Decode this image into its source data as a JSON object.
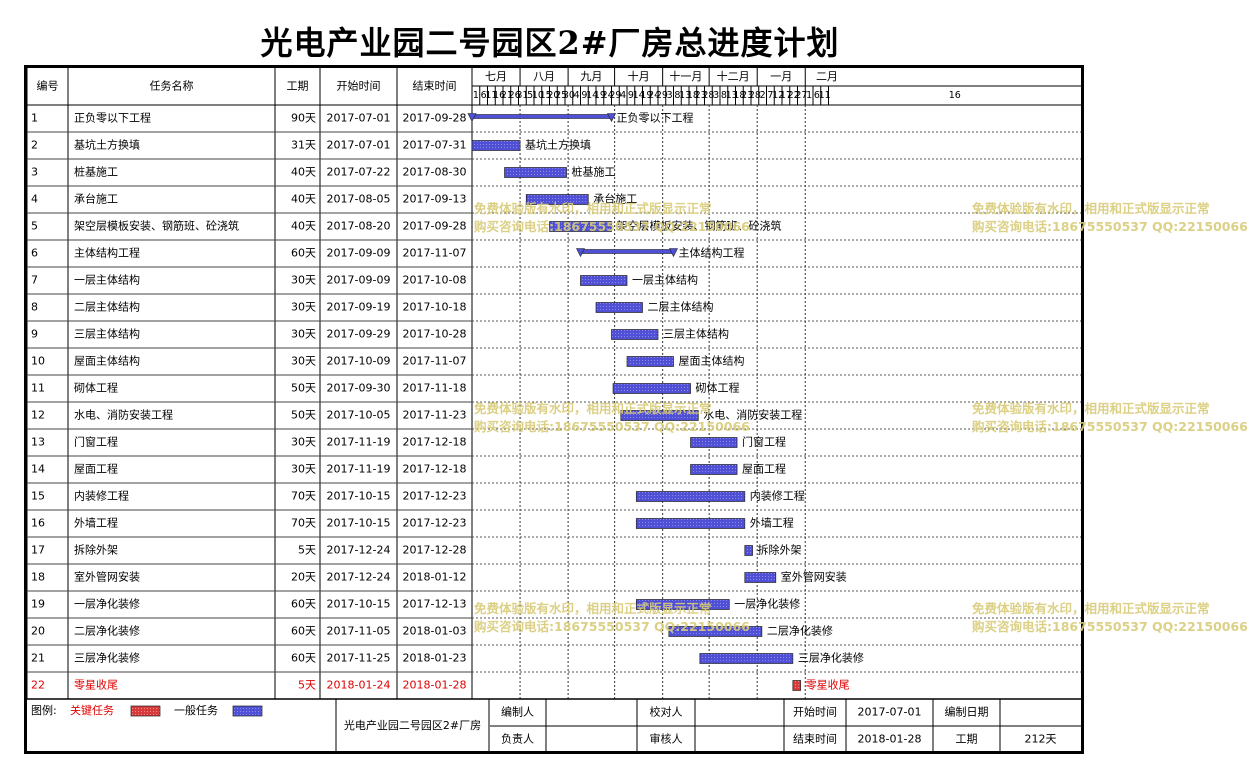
{
  "title": "光电产业园二号园区2#厂房总进度计划",
  "header": {
    "no": "编号",
    "task": "任务名称",
    "duration": "工期",
    "start": "开始时间",
    "end": "结束时间"
  },
  "timeline": {
    "months": [
      "七月",
      "八月",
      "九月",
      "十月",
      "十一月",
      "十二月",
      "一月",
      "二月"
    ],
    "day_ticks": [
      "1",
      "6",
      "11",
      "16",
      "21",
      "26",
      "31",
      "5",
      "10",
      "15",
      "20",
      "25",
      "30",
      "4",
      "9",
      "14",
      "19",
      "24",
      "29",
      "4",
      "9",
      "14",
      "19",
      "24",
      "29",
      "3",
      "8",
      "13",
      "18",
      "23",
      "28",
      "3",
      "8",
      "13",
      "18",
      "23",
      "28",
      "2",
      "7",
      "12",
      "17",
      "22",
      "27",
      "1",
      "6",
      "11",
      "16"
    ]
  },
  "chart_data": {
    "type": "gantt",
    "title": "光电产业园二号园区2#厂房总进度计划",
    "time_range": [
      "2017-07-01",
      "2018-02-20"
    ],
    "tasks": [
      {
        "no": "1",
        "name": "正负零以下工程",
        "duration": "90天",
        "start": "2017-07-01",
        "end": "2017-09-28",
        "kind": "summary"
      },
      {
        "no": "2",
        "name": "基坑土方换填",
        "duration": "31天",
        "start": "2017-07-01",
        "end": "2017-07-31",
        "kind": "normal"
      },
      {
        "no": "3",
        "name": "桩基施工",
        "duration": "40天",
        "start": "2017-07-22",
        "end": "2017-08-30",
        "kind": "normal"
      },
      {
        "no": "4",
        "name": "承台施工",
        "duration": "40天",
        "start": "2017-08-05",
        "end": "2017-09-13",
        "kind": "normal"
      },
      {
        "no": "5",
        "name": "架空层模板安装、钢筋班、砼浇筑",
        "duration": "40天",
        "start": "2017-08-20",
        "end": "2017-09-28",
        "kind": "normal"
      },
      {
        "no": "6",
        "name": "主体结构工程",
        "duration": "60天",
        "start": "2017-09-09",
        "end": "2017-11-07",
        "kind": "summary"
      },
      {
        "no": "7",
        "name": "一层主体结构",
        "duration": "30天",
        "start": "2017-09-09",
        "end": "2017-10-08",
        "kind": "normal"
      },
      {
        "no": "8",
        "name": "二层主体结构",
        "duration": "30天",
        "start": "2017-09-19",
        "end": "2017-10-18",
        "kind": "normal"
      },
      {
        "no": "9",
        "name": "三层主体结构",
        "duration": "30天",
        "start": "2017-09-29",
        "end": "2017-10-28",
        "kind": "normal"
      },
      {
        "no": "10",
        "name": "屋面主体结构",
        "duration": "30天",
        "start": "2017-10-09",
        "end": "2017-11-07",
        "kind": "normal"
      },
      {
        "no": "11",
        "name": "砌体工程",
        "duration": "50天",
        "start": "2017-09-30",
        "end": "2017-11-18",
        "kind": "normal"
      },
      {
        "no": "12",
        "name": "水电、消防安装工程",
        "duration": "50天",
        "start": "2017-10-05",
        "end": "2017-11-23",
        "kind": "normal"
      },
      {
        "no": "13",
        "name": "门窗工程",
        "duration": "30天",
        "start": "2017-11-19",
        "end": "2017-12-18",
        "kind": "normal"
      },
      {
        "no": "14",
        "name": "屋面工程",
        "duration": "30天",
        "start": "2017-11-19",
        "end": "2017-12-18",
        "kind": "normal"
      },
      {
        "no": "15",
        "name": "内装修工程",
        "duration": "70天",
        "start": "2017-10-15",
        "end": "2017-12-23",
        "kind": "normal"
      },
      {
        "no": "16",
        "name": "外墙工程",
        "duration": "70天",
        "start": "2017-10-15",
        "end": "2017-12-23",
        "kind": "normal"
      },
      {
        "no": "17",
        "name": "拆除外架",
        "duration": "5天",
        "start": "2017-12-24",
        "end": "2017-12-28",
        "kind": "normal"
      },
      {
        "no": "18",
        "name": "室外管网安装",
        "duration": "20天",
        "start": "2017-12-24",
        "end": "2018-01-12",
        "kind": "normal"
      },
      {
        "no": "19",
        "name": "一层净化装修",
        "duration": "60天",
        "start": "2017-10-15",
        "end": "2017-12-13",
        "kind": "normal"
      },
      {
        "no": "20",
        "name": "二层净化装修",
        "duration": "60天",
        "start": "2017-11-05",
        "end": "2018-01-03",
        "kind": "normal"
      },
      {
        "no": "21",
        "name": "三层净化装修",
        "duration": "60天",
        "start": "2017-11-25",
        "end": "2018-01-23",
        "kind": "normal"
      },
      {
        "no": "22",
        "name": "零星收尾",
        "duration": "5天",
        "start": "2018-01-24",
        "end": "2018-01-28",
        "kind": "critical"
      }
    ]
  },
  "legend": {
    "label": "图例:",
    "critical": "关键任务",
    "normal": "一般任务"
  },
  "footer": {
    "project": "光电产业园二号园区2#厂房",
    "compiler_label": "编制人",
    "compiler": "",
    "checker_label": "校对人",
    "checker": "",
    "owner_label": "负责人",
    "owner": "",
    "reviewer_label": "审核人",
    "reviewer": "",
    "start_label": "开始时间",
    "start_value": "2017-07-01",
    "date_label": "编制日期",
    "date_value": "",
    "end_label": "结束时间",
    "end_value": "2018-01-28",
    "duration_label": "工期",
    "duration_value": "212天"
  },
  "watermarks": [
    {
      "line1": "免费体验版有水印，相用和正式版显示正常",
      "line2": "购买咨询电话:18675550537 QQ:22150066"
    }
  ],
  "colors": {
    "normal_fill": "#4f50d6",
    "normal_hatch": "#8c8ce8",
    "critical_fill": "#d83b3b",
    "critical_text": "#e00000",
    "grid": "#888888",
    "watermark": "#d8cc78"
  }
}
